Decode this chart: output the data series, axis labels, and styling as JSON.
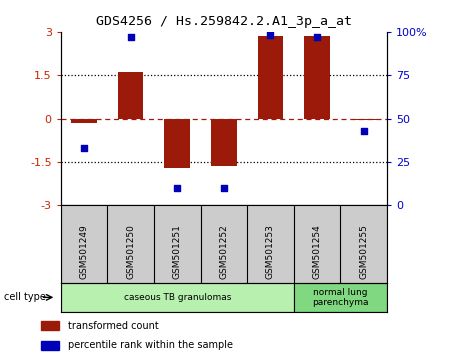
{
  "title": "GDS4256 / Hs.259842.2.A1_3p_a_at",
  "samples": [
    "GSM501249",
    "GSM501250",
    "GSM501251",
    "GSM501252",
    "GSM501253",
    "GSM501254",
    "GSM501255"
  ],
  "bar_values": [
    -0.15,
    1.6,
    -1.7,
    -1.65,
    2.85,
    2.85,
    -0.05
  ],
  "dot_values": [
    33,
    97,
    10,
    10,
    98,
    97,
    43
  ],
  "ylim_left": [
    -3,
    3
  ],
  "ylim_right": [
    0,
    100
  ],
  "yticks_left": [
    -3,
    -1.5,
    0,
    1.5,
    3
  ],
  "yticks_right": [
    0,
    25,
    50,
    75,
    100
  ],
  "ytick_labels_left": [
    "-3",
    "-1.5",
    "0",
    "1.5",
    "3"
  ],
  "ytick_labels_right": [
    "0",
    "25",
    "50",
    "75",
    "100%"
  ],
  "hlines_dotted": [
    -1.5,
    1.5
  ],
  "hline_dashed": 0,
  "cell_types": [
    {
      "label": "caseous TB granulomas",
      "color": "#b8f0b0",
      "start": 0,
      "end": 5
    },
    {
      "label": "normal lung\nparenchyma",
      "color": "#80d880",
      "start": 5,
      "end": 7
    }
  ],
  "bar_color": "#9b1a0a",
  "dot_color": "#0000bb",
  "bar_width": 0.55,
  "cell_type_label": "cell type",
  "legend_bar_label": "transformed count",
  "legend_dot_label": "percentile rank within the sample",
  "tick_color_left": "#cc2200",
  "tick_color_right": "#0000cc",
  "plot_bg": "#ffffff",
  "sample_label_bg": "#cccccc",
  "white_bg": "#ffffff"
}
